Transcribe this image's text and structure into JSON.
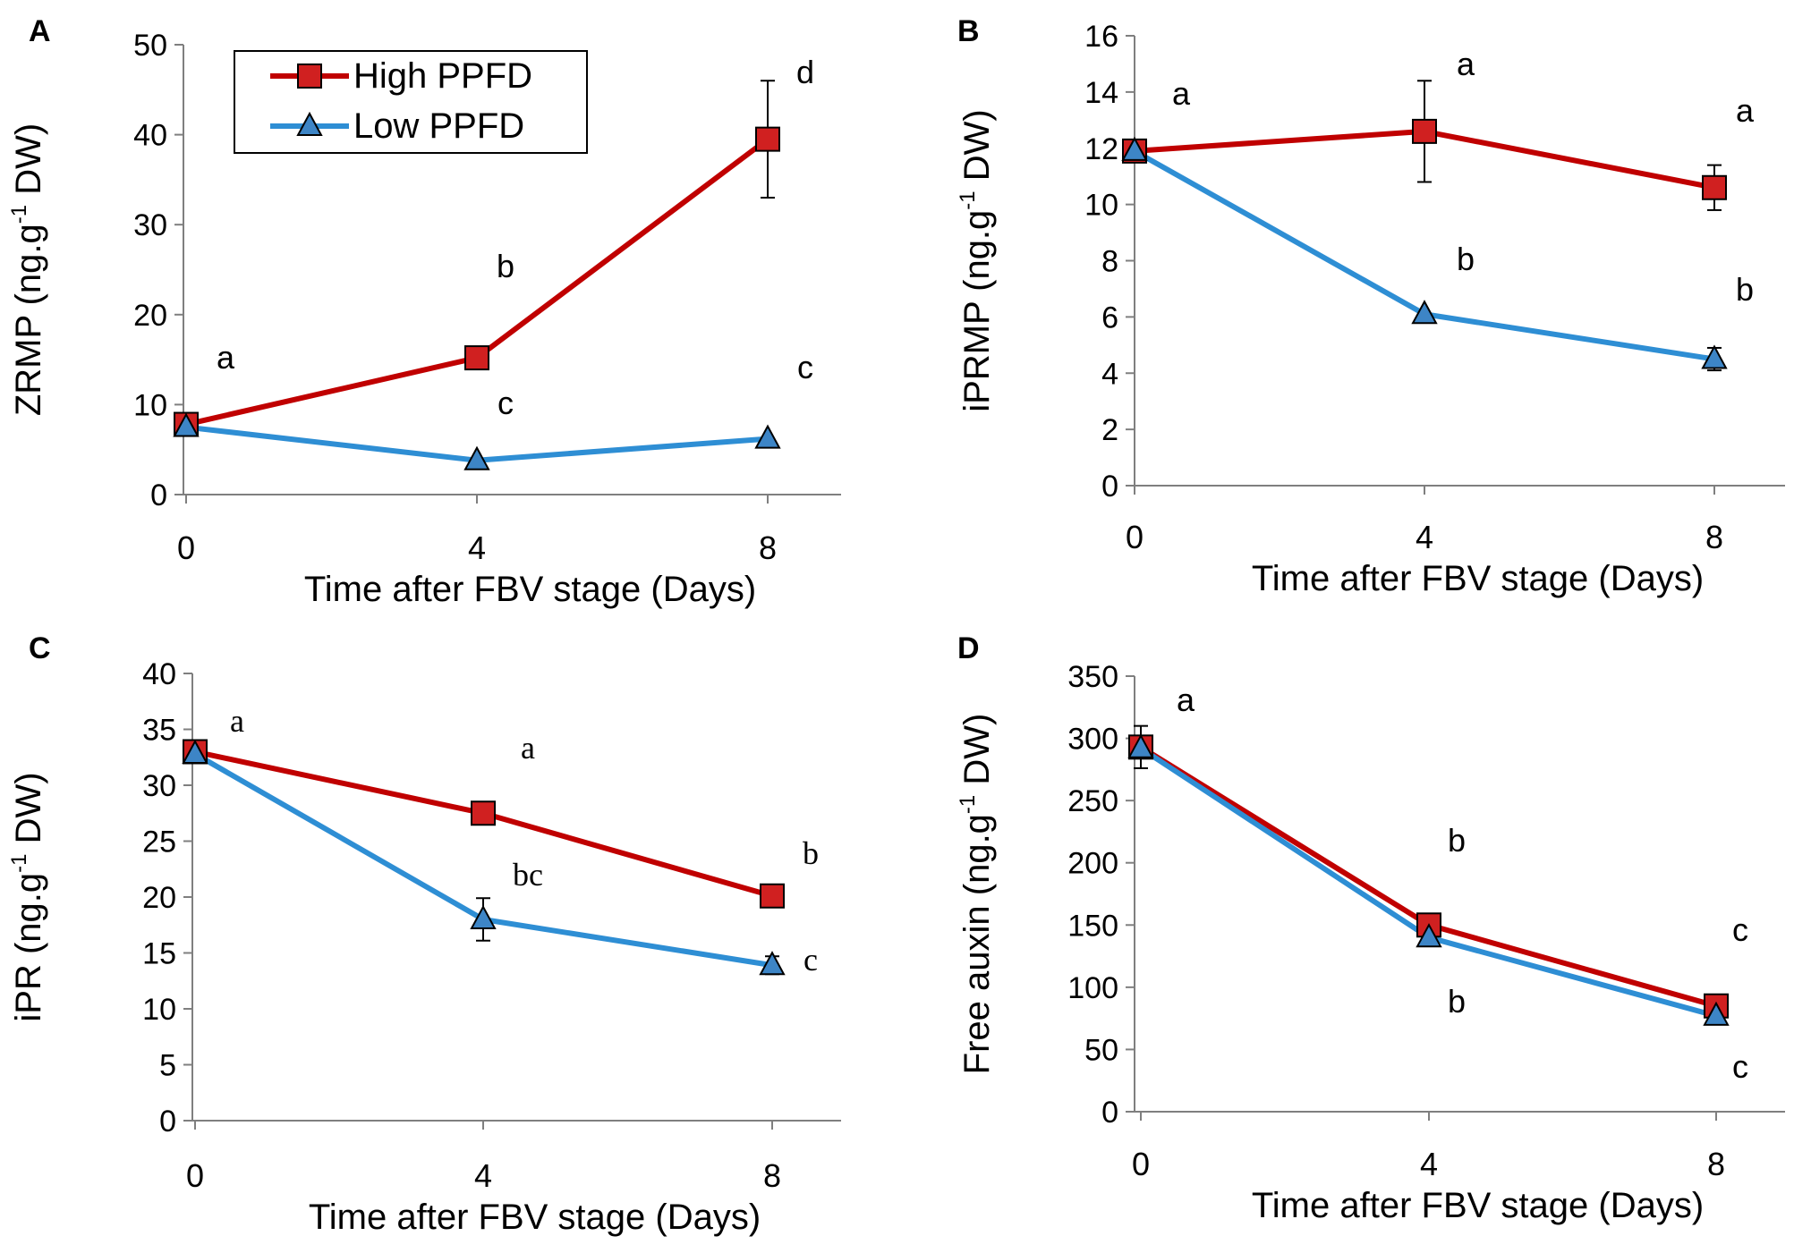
{
  "figure": {
    "legend": {
      "high_label": "High PPFD",
      "low_label": "Low PPFD"
    },
    "colors": {
      "high": "#c00000",
      "low": "#2e8ed4",
      "high_fill": "#d02020",
      "low_fill": "#3d85c6"
    }
  },
  "chart_data": [
    {
      "panel": "A",
      "type": "line",
      "x": [
        0,
        4,
        8
      ],
      "x_tick_labels": [
        "0",
        "4",
        "8"
      ],
      "xlabel": "Time after FBV stage (Days)",
      "ylabel_main": "ZRMP (ng.g",
      "ylabel_sup": "-1",
      "ylabel_end": " DW)",
      "ylim": [
        0,
        50
      ],
      "yticks": [
        0,
        10,
        20,
        30,
        40,
        50
      ],
      "label_font": "sans",
      "series": [
        {
          "name": "High PPFD",
          "values": [
            7.8,
            15.2,
            39.5
          ],
          "errors": [
            0,
            0,
            6.5
          ],
          "letters": [
            "a",
            "b",
            "d"
          ]
        },
        {
          "name": "Low PPFD",
          "values": [
            7.5,
            3.8,
            6.2
          ],
          "errors": [
            0,
            0,
            0
          ],
          "letters": [
            "",
            "c",
            "c"
          ]
        }
      ]
    },
    {
      "panel": "B",
      "type": "line",
      "x": [
        0,
        4,
        8
      ],
      "x_tick_labels": [
        "0",
        "4",
        "8"
      ],
      "xlabel": "Time after FBV stage (Days)",
      "ylabel_main": "iPRMP (ng.g",
      "ylabel_sup": "-1",
      "ylabel_end": " DW)",
      "ylim": [
        0,
        16
      ],
      "yticks": [
        0,
        2,
        4,
        6,
        8,
        10,
        12,
        14,
        16
      ],
      "label_font": "sans",
      "series": [
        {
          "name": "High PPFD",
          "values": [
            11.9,
            12.6,
            10.6
          ],
          "errors": [
            0,
            1.8,
            0.8
          ],
          "letters": [
            "a",
            "a",
            "a"
          ]
        },
        {
          "name": "Low PPFD",
          "values": [
            11.9,
            6.1,
            4.5
          ],
          "errors": [
            0,
            0,
            0.4
          ],
          "letters": [
            "",
            "b",
            "b"
          ]
        }
      ]
    },
    {
      "panel": "C",
      "type": "line",
      "x": [
        0,
        4,
        8
      ],
      "x_tick_labels": [
        "0",
        "4",
        "8"
      ],
      "xlabel": "Time after FBV stage (Days)",
      "ylabel_main": "iPR (ng.g",
      "ylabel_sup": "-1",
      "ylabel_end": " DW)",
      "ylim": [
        0,
        40
      ],
      "yticks": [
        0,
        5,
        10,
        15,
        20,
        25,
        30,
        35,
        40
      ],
      "label_font": "serif",
      "series": [
        {
          "name": "High PPFD",
          "values": [
            33.0,
            27.5,
            20.1
          ],
          "errors": [
            0,
            0.8,
            0
          ],
          "letters": [
            "a",
            "a",
            "b"
          ]
        },
        {
          "name": "Low PPFD",
          "values": [
            32.8,
            18.0,
            13.9
          ],
          "errors": [
            0,
            1.9,
            0.8
          ],
          "letters": [
            "",
            "bc",
            "c"
          ]
        }
      ]
    },
    {
      "panel": "D",
      "type": "line",
      "x": [
        0,
        4,
        8
      ],
      "x_tick_labels": [
        "0",
        "4",
        "8"
      ],
      "xlabel": "Time after FBV stage (Days)",
      "ylabel_main": "Free auxin (ng.g",
      "ylabel_sup": "-1",
      "ylabel_end": " DW)",
      "ylim": [
        0,
        350
      ],
      "yticks": [
        0,
        50,
        100,
        150,
        200,
        250,
        300,
        350
      ],
      "label_font": "sans",
      "series": [
        {
          "name": "High PPFD",
          "values": [
            293,
            150,
            85
          ],
          "errors": [
            17,
            0,
            0
          ],
          "letters": [
            "a",
            "b",
            "c"
          ]
        },
        {
          "name": "Low PPFD",
          "values": [
            292,
            140,
            77
          ],
          "errors": [
            0,
            0,
            0
          ],
          "letters": [
            "",
            "b",
            "c"
          ]
        }
      ]
    }
  ]
}
